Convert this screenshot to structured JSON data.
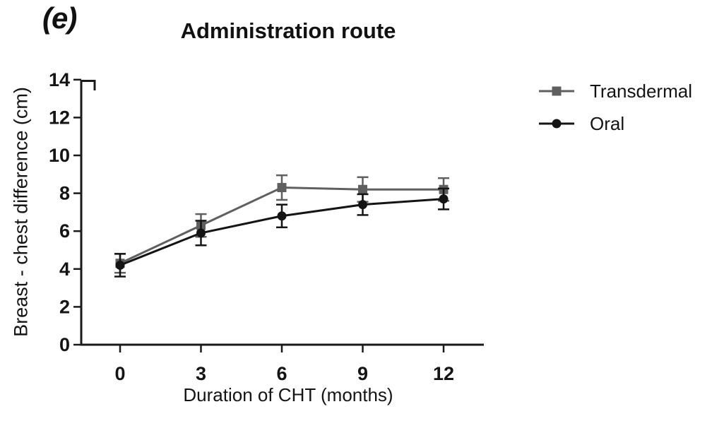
{
  "panel_label": "(e)",
  "chart_data": {
    "type": "line",
    "title": "Administration route",
    "xlabel": "Duration of CHT (months)",
    "ylabel": "Breast - chest difference (cm)",
    "x": [
      0,
      3,
      6,
      9,
      12
    ],
    "xticks": [
      0,
      3,
      6,
      9,
      12
    ],
    "yticks": [
      0,
      2,
      4,
      6,
      8,
      10,
      12,
      14
    ],
    "xlim": [
      -1.5,
      13.5
    ],
    "ylim": [
      0,
      14
    ],
    "grid": false,
    "legend_position": "right",
    "error_bar_type": "sem",
    "series": [
      {
        "name": "Transdermal",
        "marker": "square",
        "color": "#5f5f5f",
        "values": [
          4.3,
          6.3,
          8.3,
          8.2,
          8.2
        ],
        "error": [
          0.5,
          0.6,
          0.65,
          0.65,
          0.6
        ]
      },
      {
        "name": "Oral",
        "marker": "circle",
        "color": "#141414",
        "values": [
          4.2,
          5.9,
          6.8,
          7.4,
          7.7
        ],
        "error": [
          0.6,
          0.65,
          0.6,
          0.55,
          0.55
        ]
      }
    ]
  }
}
